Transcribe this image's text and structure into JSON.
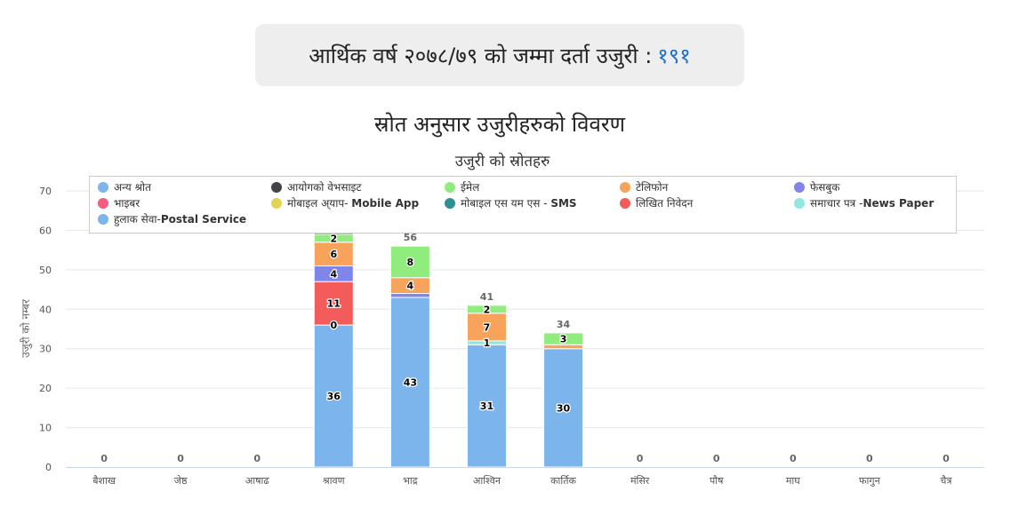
{
  "header": {
    "total_label": "आर्थिक वर्ष २०७८/७९ को जम्मा दर्ता उजुरी :",
    "total_value": "१९१"
  },
  "chart_data": {
    "type": "bar",
    "stacked": true,
    "title": "स्रोत अनुसार उजुरीहरुको विवरण",
    "subtitle": "उजुरी को स्रोतहरु",
    "xlabel": "",
    "ylabel": "उजुरी को नम्बर",
    "ylim": [
      0,
      70
    ],
    "yticks": [
      0,
      10,
      20,
      30,
      40,
      50,
      60,
      70
    ],
    "grid": true,
    "legend_position": "top",
    "categories": [
      "बैशाख",
      "जेष्ठ",
      "आषाढ",
      "श्रावण",
      "भाद्र",
      "आश्विन",
      "कार्तिक",
      "मंसिर",
      "पौष",
      "माघ",
      "फागुन",
      "चैत्र"
    ],
    "totals": [
      0,
      0,
      0,
      60,
      56,
      41,
      34,
      0,
      0,
      0,
      0,
      0
    ],
    "series": [
      {
        "name": "अन्य श्रोत",
        "name_en": "",
        "color": "#7cb5ec",
        "values": [
          0,
          0,
          0,
          0,
          0,
          0,
          0,
          0,
          0,
          0,
          0,
          0
        ]
      },
      {
        "name": "आयोगको वेभसाइट",
        "name_en": "",
        "color": "#434348",
        "values": [
          0,
          0,
          0,
          1,
          0,
          0,
          0,
          0,
          0,
          0,
          0,
          0
        ]
      },
      {
        "name": "ईमेल",
        "name_en": "",
        "color": "#90ed7d",
        "values": [
          0,
          0,
          0,
          2,
          8,
          2,
          3,
          0,
          0,
          0,
          0,
          0
        ]
      },
      {
        "name": "टेलिफोन",
        "name_en": "",
        "color": "#f7a35c",
        "values": [
          0,
          0,
          0,
          6,
          4,
          7,
          1,
          0,
          0,
          0,
          0,
          0
        ]
      },
      {
        "name": "फेसबुक",
        "name_en": "",
        "color": "#8085e9",
        "values": [
          0,
          0,
          0,
          4,
          1,
          0,
          0,
          0,
          0,
          0,
          0,
          0
        ]
      },
      {
        "name": "भाइबर",
        "name_en": "",
        "color": "#f15c80",
        "values": [
          0,
          0,
          0,
          0,
          0,
          0,
          0,
          0,
          0,
          0,
          0,
          0
        ]
      },
      {
        "name": "मोबाइल अ्याप- ",
        "name_en": "Mobile App",
        "color": "#e4d354",
        "values": [
          0,
          0,
          0,
          0,
          0,
          0,
          0,
          0,
          0,
          0,
          0,
          0
        ]
      },
      {
        "name": "मोबाइल एस यम एस - ",
        "name_en": "SMS",
        "color": "#2b908f",
        "values": [
          0,
          0,
          0,
          0,
          0,
          0,
          0,
          0,
          0,
          0,
          0,
          0
        ]
      },
      {
        "name": "लिखित निवेदन",
        "name_en": "",
        "color": "#f45b5b",
        "values": [
          0,
          0,
          0,
          11,
          0,
          0,
          0,
          0,
          0,
          0,
          0,
          0
        ]
      },
      {
        "name": "समाचार पत्र -",
        "name_en": "News Paper",
        "color": "#91e8e1",
        "values": [
          0,
          0,
          0,
          0,
          0,
          1,
          0,
          0,
          0,
          0,
          0,
          0
        ]
      },
      {
        "name": "हुलाक सेवा-",
        "name_en": "Postal Service",
        "color": "#7cb5ec",
        "values": [
          0,
          0,
          0,
          36,
          43,
          31,
          30,
          0,
          0,
          0,
          0,
          0
        ]
      }
    ],
    "segment_labels": [
      {
        "category": "श्रावण",
        "series": "हुलाक सेवा-",
        "label": "36"
      },
      {
        "category": "श्रावण",
        "series": "समाचार पत्र -",
        "label": "0"
      },
      {
        "category": "श्रावण",
        "series": "लिखित निवेदन",
        "label": "11"
      },
      {
        "category": "श्रावण",
        "series": "फेसबुक",
        "label": "4"
      },
      {
        "category": "श्रावण",
        "series": "टेलिफोन",
        "label": "6"
      },
      {
        "category": "श्रावण",
        "series": "ईमेल",
        "label": "2"
      },
      {
        "category": "भाद्र",
        "series": "हुलाक सेवा-",
        "label": "43"
      },
      {
        "category": "भाद्र",
        "series": "टेलिफोन",
        "label": "4"
      },
      {
        "category": "भाद्र",
        "series": "ईमेल",
        "label": "8"
      },
      {
        "category": "आश्विन",
        "series": "हुलाक सेवा-",
        "label": "31"
      },
      {
        "category": "आश्विन",
        "series": "समाचार पत्र -",
        "label": "1"
      },
      {
        "category": "आश्विन",
        "series": "टेलिफोन",
        "label": "7"
      },
      {
        "category": "आश्विन",
        "series": "ईमेल",
        "label": "2"
      },
      {
        "category": "कार्तिक",
        "series": "हुलाक सेवा-",
        "label": "30"
      },
      {
        "category": "कार्तिक",
        "series": "ईमेल",
        "label": "3"
      }
    ]
  }
}
